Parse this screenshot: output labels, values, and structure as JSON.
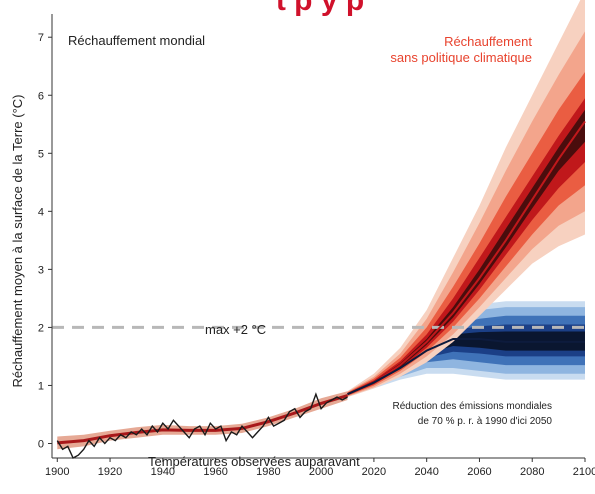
{
  "header_cut_text": "t      p      y p",
  "chart_data": {
    "type": "area",
    "title": "Réchauffement mondial",
    "ylabel": "Réchauffement moyen à la surface de la Terre (°C)",
    "xlabel": "",
    "xlim": [
      1898,
      2100
    ],
    "ylim": [
      -0.25,
      7.4
    ],
    "x_ticks": [
      "1900",
      "1920",
      "1940",
      "1960",
      "1980",
      "2000",
      "2020",
      "2040",
      "2060",
      "2080",
      "2100"
    ],
    "y_ticks": [
      "0",
      "1",
      "2",
      "3",
      "4",
      "5",
      "6",
      "7"
    ],
    "grid": false,
    "annotations": {
      "no_policy_line1": "Réchauffement",
      "no_policy_line2": "sans politique climatique",
      "threshold_label": "max +2 °C",
      "reduction_line1": "Réduction des émissions mondiales",
      "reduction_line2": "de 70 % p. r. à 1990 d'ici 2050",
      "observed_label": "Températures observées auparavant"
    },
    "threshold": {
      "y": 2.0
    },
    "observed": {
      "x": [
        1900,
        1902,
        1904,
        1906,
        1908,
        1910,
        1912,
        1914,
        1916,
        1918,
        1920,
        1922,
        1924,
        1926,
        1928,
        1930,
        1932,
        1934,
        1936,
        1938,
        1940,
        1942,
        1944,
        1946,
        1948,
        1950,
        1952,
        1954,
        1956,
        1958,
        1960,
        1962,
        1964,
        1966,
        1968,
        1970,
        1972,
        1974,
        1976,
        1978,
        1980,
        1982,
        1984,
        1986,
        1988,
        1990,
        1992,
        1994,
        1996,
        1998,
        2000,
        2002,
        2004,
        2006,
        2008,
        2010
      ],
      "y": [
        0.05,
        -0.1,
        -0.05,
        -0.25,
        -0.2,
        -0.1,
        0.05,
        -0.05,
        0.1,
        0.0,
        0.1,
        0.05,
        0.15,
        0.1,
        0.2,
        0.15,
        0.25,
        0.15,
        0.3,
        0.2,
        0.35,
        0.25,
        0.4,
        0.3,
        0.2,
        0.1,
        0.25,
        0.3,
        0.15,
        0.35,
        0.25,
        0.3,
        0.05,
        0.2,
        0.15,
        0.3,
        0.2,
        0.1,
        0.2,
        0.3,
        0.45,
        0.3,
        0.35,
        0.4,
        0.55,
        0.6,
        0.45,
        0.55,
        0.6,
        0.85,
        0.6,
        0.7,
        0.75,
        0.8,
        0.75,
        0.8
      ]
    },
    "hist_band": {
      "x": [
        1900,
        1910,
        1920,
        1930,
        1940,
        1950,
        1960,
        1970,
        1980,
        1990,
        2000,
        2010
      ],
      "low": [
        -0.1,
        -0.05,
        0.05,
        0.1,
        0.15,
        0.15,
        0.15,
        0.18,
        0.3,
        0.45,
        0.6,
        0.75
      ],
      "high": [
        0.12,
        0.15,
        0.22,
        0.28,
        0.32,
        0.3,
        0.3,
        0.34,
        0.45,
        0.6,
        0.78,
        0.9
      ]
    },
    "series": [
      {
        "name": "Réchauffement sans politique climatique",
        "color": "#c0181b",
        "x": [
          2010,
          2020,
          2030,
          2040,
          2050,
          2060,
          2070,
          2080,
          2090,
          2100
        ],
        "median": [
          0.85,
          1.05,
          1.35,
          1.75,
          2.25,
          2.85,
          3.5,
          4.2,
          4.9,
          5.55
        ],
        "bands": [
          {
            "color": "#f7d1c0",
            "low": [
              0.8,
              0.95,
              1.15,
              1.4,
              1.75,
              2.2,
              2.65,
              3.1,
              3.4,
              3.6
            ],
            "high": [
              0.9,
              1.2,
              1.65,
              2.3,
              3.2,
              4.1,
              5.1,
              6.0,
              6.9,
              7.8
            ]
          },
          {
            "color": "#f3a58c",
            "low": [
              0.81,
              0.97,
              1.2,
              1.5,
              1.88,
              2.35,
              2.85,
              3.35,
              3.75,
              4.0
            ],
            "high": [
              0.89,
              1.15,
              1.55,
              2.15,
              2.95,
              3.8,
              4.7,
              5.55,
              6.35,
              7.1
            ]
          },
          {
            "color": "#ea5d42",
            "low": [
              0.82,
              1.0,
              1.25,
              1.58,
              2.0,
              2.5,
              3.05,
              3.6,
              4.1,
              4.45
            ],
            "high": [
              0.88,
              1.12,
              1.48,
              2.0,
              2.7,
              3.45,
              4.25,
              5.0,
              5.75,
              6.4
            ]
          },
          {
            "color": "#c0181b",
            "low": [
              0.83,
              1.02,
              1.29,
              1.65,
              2.1,
              2.65,
              3.25,
              3.85,
              4.4,
              4.85
            ],
            "high": [
              0.87,
              1.09,
              1.42,
              1.88,
              2.5,
              3.2,
              3.9,
              4.6,
              5.3,
              5.95
            ]
          },
          {
            "color": "#4a0d0d",
            "low": [
              0.84,
              1.03,
              1.31,
              1.7,
              2.17,
              2.75,
              3.38,
              4.05,
              4.7,
              5.2
            ],
            "high": [
              0.86,
              1.07,
              1.38,
              1.8,
              2.35,
              3.0,
              3.7,
              4.4,
              5.1,
              5.75
            ]
          }
        ]
      },
      {
        "name": "Réduction des émissions mondiales de 70 % p. r. à 1990 d'ici 2050",
        "color": "#0d1b3d",
        "x": [
          2010,
          2020,
          2030,
          2040,
          2050,
          2060,
          2070,
          2080,
          2090,
          2100
        ],
        "median": [
          0.85,
          1.05,
          1.3,
          1.6,
          1.8,
          1.8,
          1.75,
          1.75,
          1.75,
          1.75
        ],
        "bands": [
          {
            "color": "#c9dcf0",
            "low": [
              0.8,
              0.95,
              1.1,
              1.2,
              1.2,
              1.15,
              1.1,
              1.1,
              1.1,
              1.1
            ],
            "high": [
              0.9,
              1.2,
              1.6,
              2.0,
              2.3,
              2.4,
              2.45,
              2.45,
              2.45,
              2.45
            ]
          },
          {
            "color": "#8fb5e0",
            "low": [
              0.81,
              0.97,
              1.15,
              1.3,
              1.3,
              1.25,
              1.2,
              1.2,
              1.2,
              1.2
            ],
            "high": [
              0.89,
              1.15,
              1.5,
              1.9,
              2.2,
              2.3,
              2.35,
              2.35,
              2.35,
              2.35
            ]
          },
          {
            "color": "#3f72b8",
            "low": [
              0.82,
              1.0,
              1.2,
              1.4,
              1.45,
              1.4,
              1.35,
              1.35,
              1.35,
              1.35
            ],
            "high": [
              0.88,
              1.12,
              1.42,
              1.8,
              2.05,
              2.15,
              2.2,
              2.2,
              2.2,
              2.2
            ]
          },
          {
            "color": "#1b3f86",
            "low": [
              0.83,
              1.01,
              1.24,
              1.48,
              1.58,
              1.55,
              1.5,
              1.5,
              1.5,
              1.5
            ],
            "high": [
              0.87,
              1.09,
              1.36,
              1.72,
              1.95,
              2.02,
              2.05,
              2.05,
              2.05,
              2.05
            ]
          },
          {
            "color": "#0a1630",
            "low": [
              0.84,
              1.02,
              1.27,
              1.55,
              1.68,
              1.65,
              1.6,
              1.6,
              1.6,
              1.6
            ],
            "high": [
              0.86,
              1.07,
              1.32,
              1.66,
              1.88,
              1.92,
              1.93,
              1.93,
              1.93,
              1.93
            ]
          }
        ]
      }
    ]
  }
}
